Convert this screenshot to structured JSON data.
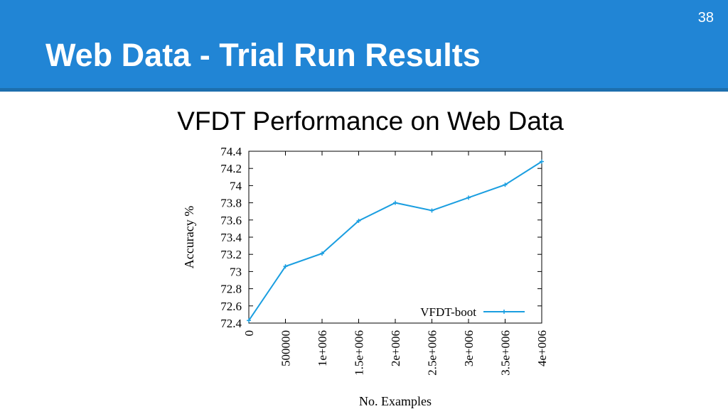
{
  "slide": {
    "number": "38",
    "title": "Web Data - Trial Run Results",
    "header_color": "#2185d5"
  },
  "chart_data": {
    "type": "line",
    "title": "VFDT Performance on Web Data",
    "xlabel": "No. Examples",
    "ylabel": "Accuracy %",
    "xlim": [
      0,
      4000000
    ],
    "ylim": [
      72.4,
      74.4
    ],
    "x_ticks": [
      "0",
      "500000",
      "1e+006",
      "1.5e+006",
      "2e+006",
      "2.5e+006",
      "3e+006",
      "3.5e+006",
      "4e+006"
    ],
    "y_ticks": [
      "72.4",
      "72.6",
      "72.8",
      "73",
      "73.2",
      "73.4",
      "73.6",
      "73.8",
      "74",
      "74.2",
      "74.4"
    ],
    "grid": false,
    "legend_position": "bottom-right",
    "series": [
      {
        "name": "VFDT-boot",
        "color": "#1a9ee0",
        "x": [
          0,
          500000,
          1000000,
          1500000,
          2000000,
          2500000,
          3000000,
          3500000,
          4000000
        ],
        "y": [
          72.43,
          73.06,
          73.21,
          73.59,
          73.8,
          73.71,
          73.86,
          74.01,
          74.28
        ]
      }
    ]
  }
}
